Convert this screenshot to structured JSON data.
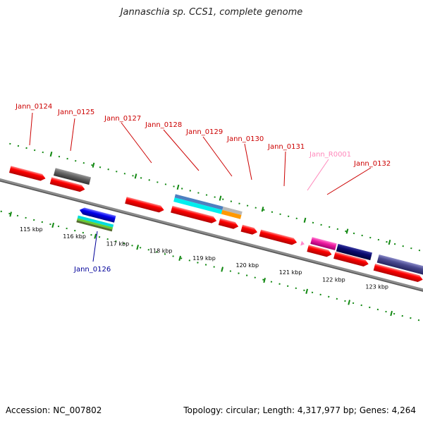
{
  "title": "Jannaschia sp. CCS1, complete genome",
  "footer": {
    "accession": "Accession: NC_007802",
    "summary": "Topology: circular; Length: 4,317,977 bp; Genes: 4,264"
  },
  "colors": {
    "cds": "#ff0000",
    "rna": "#ff3399",
    "label_red": "#cc0000",
    "label_blue": "#000099",
    "label_pink": "#ff88bb",
    "tick": "#118811",
    "backbone": "#888888"
  },
  "scale": {
    "tick_labels": [
      "115 kbp",
      "116 kbp",
      "117 kbp",
      "118 kbp",
      "119 kbp",
      "120 kbp",
      "121 kbp",
      "122 kbp",
      "123 kbp"
    ]
  },
  "gene_labels": [
    {
      "text": "Jann_0124",
      "color": "red"
    },
    {
      "text": "Jann_0125",
      "color": "red"
    },
    {
      "text": "Jann_0127",
      "color": "red"
    },
    {
      "text": "Jann_0128",
      "color": "red"
    },
    {
      "text": "Jann_0129",
      "color": "red"
    },
    {
      "text": "Jann_0130",
      "color": "red"
    },
    {
      "text": "Jann_0131",
      "color": "red"
    },
    {
      "text": "Jann_R0001",
      "color": "pink"
    },
    {
      "text": "Jann_0132",
      "color": "red"
    },
    {
      "text": "Jann_0126",
      "color": "blue"
    }
  ]
}
